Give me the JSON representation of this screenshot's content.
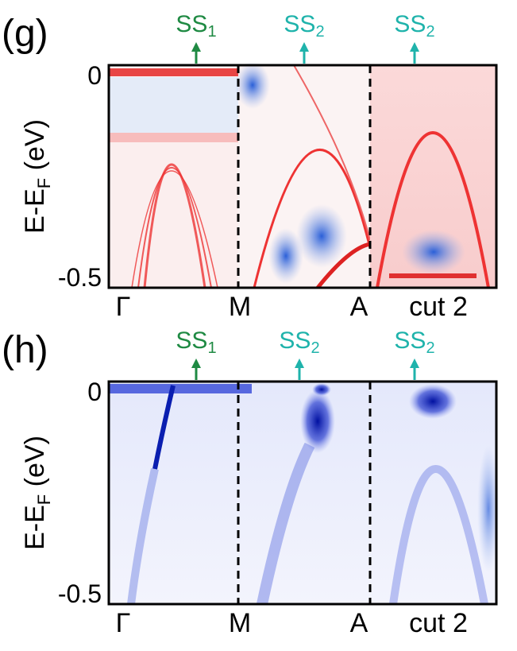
{
  "panels": [
    {
      "label": "(g)",
      "annotations": [
        {
          "text": "SS",
          "sub": "1",
          "color": "#1f8a43"
        },
        {
          "text": "SS",
          "sub": "2",
          "color": "#1fb3ab"
        },
        {
          "text": "SS",
          "sub": "2",
          "color": "#1fb3ab"
        }
      ],
      "y_axis": {
        "label": "E-E",
        "label_sub": "F",
        "label_unit": "(eV)",
        "ticks": [
          0,
          -0.5
        ]
      },
      "x_labels": [
        "Γ",
        "M",
        "A",
        "cut 2"
      ]
    },
    {
      "label": "(h)",
      "annotations": [
        {
          "text": "SS",
          "sub": "1",
          "color": "#1f8a43"
        },
        {
          "text": "SS",
          "sub": "2",
          "color": "#1fb3ab"
        },
        {
          "text": "SS",
          "sub": "2",
          "color": "#1fb3ab"
        }
      ],
      "y_axis": {
        "label": "E-E",
        "label_sub": "F",
        "label_unit": "(eV)",
        "ticks": [
          0,
          -0.5
        ]
      },
      "x_labels": [
        "Γ",
        "M",
        "A",
        "cut 2"
      ]
    }
  ]
}
